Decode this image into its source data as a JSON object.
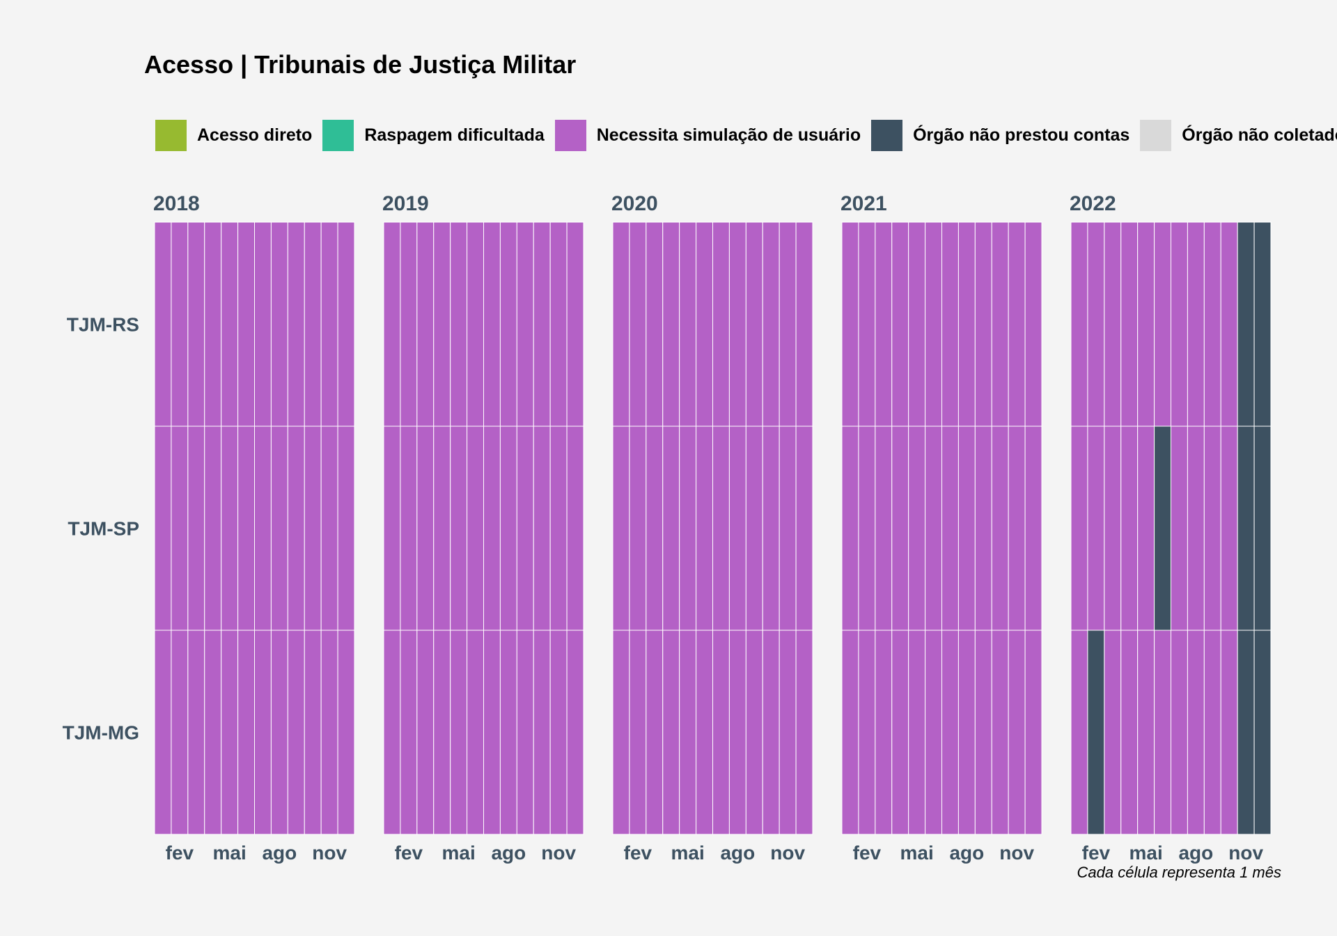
{
  "chart_data": {
    "type": "heatmap",
    "title": "Acesso | Tribunais de Justiça Militar",
    "legend": {
      "placement": "top",
      "items": [
        {
          "label": "Acesso direto",
          "color": "#97ba30"
        },
        {
          "label": "Raspagem dificultada",
          "color": "#2fbe96"
        },
        {
          "label": "Necessita simulação de usuário",
          "color": "#b461c6"
        },
        {
          "label": "Órgão não prestou contas",
          "color": "#3d5161"
        },
        {
          "label": "Órgão não coletado",
          "color": "#d9d9d9"
        }
      ]
    },
    "rows": [
      "TJM-RS",
      "TJM-SP",
      "TJM-MG"
    ],
    "years": [
      "2018",
      "2019",
      "2020",
      "2021",
      "2022"
    ],
    "month_tick_labels": [
      "fev",
      "mai",
      "ago",
      "nov"
    ],
    "month_tick_positions": [
      2,
      5,
      8,
      11
    ],
    "months_per_year": 12,
    "status_key": {
      "N": "Necessita simulação de usuário",
      "O": "Órgão não prestou contas"
    },
    "values": {
      "2018": {
        "TJM-RS": [
          "N",
          "N",
          "N",
          "N",
          "N",
          "N",
          "N",
          "N",
          "N",
          "N",
          "N",
          "N"
        ],
        "TJM-SP": [
          "N",
          "N",
          "N",
          "N",
          "N",
          "N",
          "N",
          "N",
          "N",
          "N",
          "N",
          "N"
        ],
        "TJM-MG": [
          "N",
          "N",
          "N",
          "N",
          "N",
          "N",
          "N",
          "N",
          "N",
          "N",
          "N",
          "N"
        ]
      },
      "2019": {
        "TJM-RS": [
          "N",
          "N",
          "N",
          "N",
          "N",
          "N",
          "N",
          "N",
          "N",
          "N",
          "N",
          "N"
        ],
        "TJM-SP": [
          "N",
          "N",
          "N",
          "N",
          "N",
          "N",
          "N",
          "N",
          "N",
          "N",
          "N",
          "N"
        ],
        "TJM-MG": [
          "N",
          "N",
          "N",
          "N",
          "N",
          "N",
          "N",
          "N",
          "N",
          "N",
          "N",
          "N"
        ]
      },
      "2020": {
        "TJM-RS": [
          "N",
          "N",
          "N",
          "N",
          "N",
          "N",
          "N",
          "N",
          "N",
          "N",
          "N",
          "N"
        ],
        "TJM-SP": [
          "N",
          "N",
          "N",
          "N",
          "N",
          "N",
          "N",
          "N",
          "N",
          "N",
          "N",
          "N"
        ],
        "TJM-MG": [
          "N",
          "N",
          "N",
          "N",
          "N",
          "N",
          "N",
          "N",
          "N",
          "N",
          "N",
          "N"
        ]
      },
      "2021": {
        "TJM-RS": [
          "N",
          "N",
          "N",
          "N",
          "N",
          "N",
          "N",
          "N",
          "N",
          "N",
          "N",
          "N"
        ],
        "TJM-SP": [
          "N",
          "N",
          "N",
          "N",
          "N",
          "N",
          "N",
          "N",
          "N",
          "N",
          "N",
          "N"
        ],
        "TJM-MG": [
          "N",
          "N",
          "N",
          "N",
          "N",
          "N",
          "N",
          "N",
          "N",
          "N",
          "N",
          "N"
        ]
      },
      "2022": {
        "TJM-RS": [
          "N",
          "N",
          "N",
          "N",
          "N",
          "N",
          "N",
          "N",
          "N",
          "N",
          "O",
          "O"
        ],
        "TJM-SP": [
          "N",
          "N",
          "N",
          "N",
          "N",
          "O",
          "N",
          "N",
          "N",
          "N",
          "O",
          "O"
        ],
        "TJM-MG": [
          "N",
          "O",
          "N",
          "N",
          "N",
          "N",
          "N",
          "N",
          "N",
          "N",
          "O",
          "O"
        ]
      }
    },
    "caption": "Cada célula representa 1 mês",
    "grid": false
  },
  "colors": {
    "background": "#f4f4f4",
    "axis_text": "#3d5161",
    "cell_border": "#ffffff"
  }
}
